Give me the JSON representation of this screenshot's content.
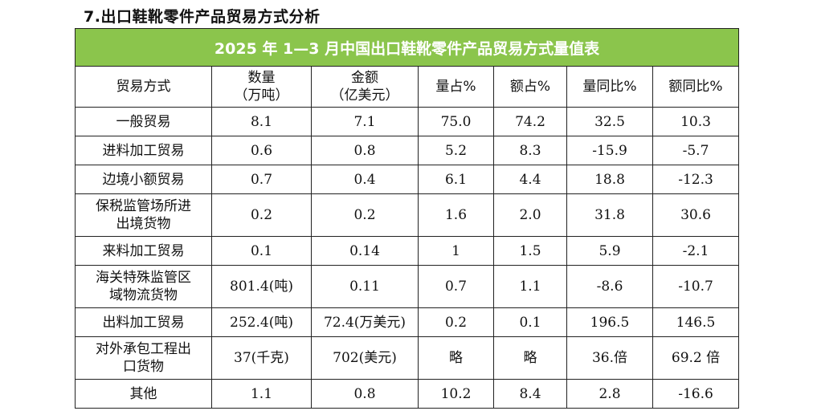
{
  "section_heading": "7.出口鞋靴零件产品贸易方式分析",
  "table": {
    "title": "2025 年 1—3 月中国出口鞋靴零件产品贸易方式量值表",
    "headers": [
      [
        "贸易方式"
      ],
      [
        "数量",
        "（万吨）"
      ],
      [
        "金额",
        "（亿美元）"
      ],
      [
        "量占%"
      ],
      [
        "额占%"
      ],
      [
        "量同比%"
      ],
      [
        "额同比%"
      ]
    ],
    "rows": [
      {
        "name": [
          "一般贸易"
        ],
        "qty": "8.1",
        "amount": "7.1",
        "qty_share": "75.0",
        "amt_share": "74.2",
        "qty_yoy": "32.5",
        "amt_yoy": "10.3"
      },
      {
        "name": [
          "进料加工贸易"
        ],
        "qty": "0.6",
        "amount": "0.8",
        "qty_share": "5.2",
        "amt_share": "8.3",
        "qty_yoy": "-15.9",
        "amt_yoy": "-5.7"
      },
      {
        "name": [
          "边境小额贸易"
        ],
        "qty": "0.7",
        "amount": "0.4",
        "qty_share": "6.1",
        "amt_share": "4.4",
        "qty_yoy": "18.8",
        "amt_yoy": "-12.3"
      },
      {
        "name": [
          "保税监管场所进",
          "出境货物"
        ],
        "qty": "0.2",
        "amount": "0.2",
        "qty_share": "1.6",
        "amt_share": "2.0",
        "qty_yoy": "31.8",
        "amt_yoy": "30.6"
      },
      {
        "name": [
          "来料加工贸易"
        ],
        "qty": "0.1",
        "amount": "0.14",
        "qty_share": "1",
        "amt_share": "1.5",
        "qty_yoy": "5.9",
        "amt_yoy": "-2.1"
      },
      {
        "name": [
          "海关特殊监管区",
          "域物流货物"
        ],
        "qty": "801.4(吨)",
        "amount": "0.11",
        "qty_share": "0.7",
        "amt_share": "1.1",
        "qty_yoy": "-8.6",
        "amt_yoy": "-10.7"
      },
      {
        "name": [
          "出料加工贸易"
        ],
        "qty": "252.4(吨)",
        "amount": "72.4(万美元)",
        "qty_share": "0.2",
        "amt_share": "0.1",
        "qty_yoy": "196.5",
        "amt_yoy": "146.5"
      },
      {
        "name": [
          "对外承包工程出",
          "口货物"
        ],
        "qty": "37(千克)",
        "amount": "702(美元)",
        "qty_share": "略",
        "amt_share": "略",
        "qty_yoy": "36.倍",
        "amt_yoy": "69.2 倍"
      },
      {
        "name": [
          "其他"
        ],
        "qty": "1.1",
        "amount": "0.8",
        "qty_share": "10.2",
        "amt_share": "8.4",
        "qty_yoy": "2.8",
        "amt_yoy": "-16.6"
      }
    ]
  }
}
